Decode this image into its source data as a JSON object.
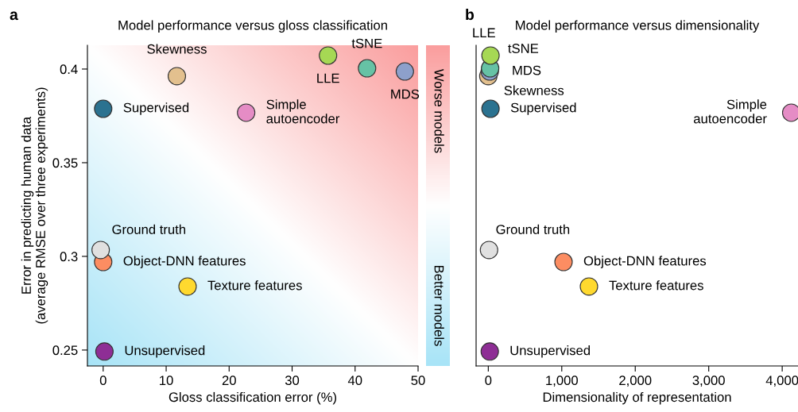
{
  "chart_data": [
    {
      "type": "scatter",
      "title": "Model performance versus gloss classification",
      "xlabel": "Gloss classification error (%)",
      "ylabel": "Error in predicting human data\n(average RMSE over three experiments)",
      "x": [
        0,
        11.7,
        22.7,
        35.7,
        41.9,
        47.9,
        -0.4,
        0,
        13.4,
        0.2
      ],
      "values": [
        0.3788,
        0.3962,
        0.3767,
        0.4072,
        0.4004,
        0.3987,
        0.3034,
        0.297,
        0.2839,
        0.2492
      ],
      "colors": [
        "#2b7290",
        "#e3c08e",
        "#e58cc5",
        "#a6d854",
        "#66c2a5",
        "#8da0cb",
        "#e0e0e0",
        "#fc8d62",
        "#ffd92f",
        "#8e2e95"
      ],
      "xlim": [
        -2.5,
        50
      ],
      "xticks": [
        0,
        10,
        20,
        30,
        40,
        50
      ],
      "ylim": [
        0.2415,
        0.4127
      ],
      "yticks": [
        0.25,
        0.3,
        0.35,
        0.4
      ],
      "annotations": [
        "a",
        "Worse models",
        "Better models",
        {
          "text": "Supervised",
          "x": 0,
          "y": 0.3788
        },
        {
          "text": "Skewness",
          "x": 11.7,
          "y": 0.3962
        },
        {
          "text": "Simple\nautoencoder",
          "x": 22.7,
          "y": 0.3767
        },
        {
          "text": "LLE",
          "x": 35.7,
          "y": 0.4072
        },
        {
          "text": "tSNE",
          "x": 41.9,
          "y": 0.4004
        },
        {
          "text": "MDS",
          "x": 47.9,
          "y": 0.3987
        },
        {
          "text": "Ground truth",
          "x": -0.4,
          "y": 0.3034
        },
        {
          "text": "Object-DNN features",
          "x": 0,
          "y": 0.297
        },
        {
          "text": "Texture features",
          "x": 13.4,
          "y": 0.2839
        },
        {
          "text": "Unsupervised",
          "x": 0.2,
          "y": 0.2492
        }
      ]
    },
    {
      "type": "scatter",
      "title": "Model performance versus dimensionality",
      "xlabel": "Dimensionality of representation",
      "x": [
        30,
        0,
        4123,
        30,
        25,
        20,
        10,
        1024,
        1370,
        20
      ],
      "values": [
        0.3788,
        0.3962,
        0.3767,
        0.4072,
        0.4004,
        0.3987,
        0.3034,
        0.297,
        0.2839,
        0.2492
      ],
      "colors": [
        "#2b7290",
        "#e3c08e",
        "#e58cc5",
        "#a6d854",
        "#66c2a5",
        "#8da0cb",
        "#e0e0e0",
        "#fc8d62",
        "#ffd92f",
        "#8e2e95"
      ],
      "xlim": [
        -166,
        4215
      ],
      "xticks": [
        0,
        {
          "value": 1000,
          "label": "1,000"
        },
        {
          "value": 2000,
          "label": "2,000"
        },
        {
          "value": 3000,
          "label": "3,000"
        },
        {
          "value": 4000,
          "label": "4,000"
        }
      ],
      "ylim": [
        0.2415,
        0.4127
      ],
      "tick_labels": "x",
      "annotations": [
        "b",
        {
          "text": "Supervised",
          "x": 30,
          "y": 0.3788
        },
        {
          "text": "Skewness",
          "x": 0,
          "y": 0.3962
        },
        {
          "text": "Simple\nautoencoder",
          "x": 4123,
          "y": 0.3767
        },
        {
          "text": "LLE",
          "x": 30,
          "y": 0.4072
        },
        {
          "text": "tSNE",
          "x": 25,
          "y": 0.4004
        },
        {
          "text": "MDS",
          "x": 20,
          "y": 0.3987
        },
        {
          "text": "Ground truth",
          "x": 10,
          "y": 0.3034
        },
        {
          "text": "Object-DNN features",
          "x": 1024,
          "y": 0.297
        },
        {
          "text": "Texture features",
          "x": 1370,
          "y": 0.2839
        },
        {
          "text": "Unsupervised",
          "x": 20,
          "y": 0.2492
        }
      ]
    }
  ]
}
